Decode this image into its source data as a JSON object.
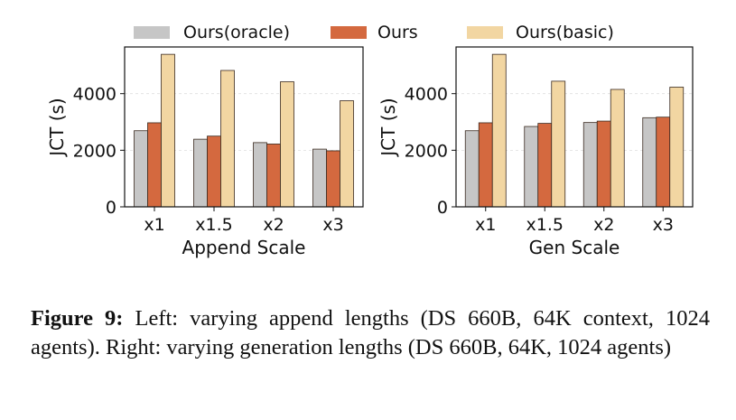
{
  "legend": [
    "Ours(oracle)",
    "Ours",
    "Ours(basic)"
  ],
  "colors": {
    "Ours(oracle)": "#c6c6c6",
    "Ours": "#d4693f",
    "Ours(basic)": "#f2d6a2",
    "edge": "#3a2a20"
  },
  "chart_data": [
    {
      "type": "bar",
      "xlabel": "Append Scale",
      "ylabel": "JCT (s)",
      "categories": [
        "x1",
        "x1.5",
        "x2",
        "x3"
      ],
      "ylim": [
        0,
        5650
      ],
      "yticks": [
        0,
        2000,
        4000
      ],
      "grid": "horizontal dashed",
      "legend_placement": "top (shared)",
      "series": [
        {
          "name": "Ours(oracle)",
          "values": [
            2690,
            2390,
            2270,
            2040
          ]
        },
        {
          "name": "Ours",
          "values": [
            2970,
            2500,
            2220,
            1980
          ]
        },
        {
          "name": "Ours(basic)",
          "values": [
            5390,
            4820,
            4420,
            3750
          ]
        }
      ]
    },
    {
      "type": "bar",
      "xlabel": "Gen Scale",
      "ylabel": "JCT (s)",
      "categories": [
        "x1",
        "x1.5",
        "x2",
        "x3"
      ],
      "ylim": [
        0,
        5650
      ],
      "yticks": [
        0,
        2000,
        4000
      ],
      "grid": "horizontal dashed",
      "legend_placement": "top (shared)",
      "series": [
        {
          "name": "Ours(oracle)",
          "values": [
            2690,
            2840,
            2980,
            3150
          ]
        },
        {
          "name": "Ours",
          "values": [
            2970,
            2950,
            3030,
            3170
          ]
        },
        {
          "name": "Ours(basic)",
          "values": [
            5390,
            4440,
            4150,
            4230
          ]
        }
      ]
    }
  ],
  "caption": {
    "label": "Figure 9:",
    "text": " Left: varying append lengths (DS 660B, 64K context, 1024 agents). Right: varying generation lengths (DS 660B, 64K, 1024 agents)"
  }
}
